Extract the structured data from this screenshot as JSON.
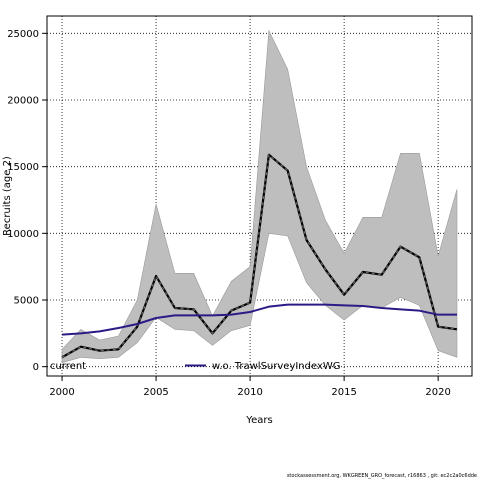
{
  "chart_data": {
    "type": "line",
    "xlabel": "Years",
    "ylabel": "Recruits (age 2)",
    "xlim": [
      1999.2,
      2021.8
    ],
    "ylim": [
      -700,
      26300
    ],
    "xticks": [
      2000,
      2005,
      2010,
      2015,
      2020
    ],
    "yticks": [
      0,
      5000,
      10000,
      15000,
      20000,
      25000
    ],
    "grid": true,
    "legend_position": "bottom",
    "colors": {
      "band": "#bebebe",
      "band_edge": "#9a9a9a",
      "current": "#000000",
      "current_dash": "#666666",
      "alt_series": "#2b1b86"
    },
    "x": [
      2000,
      2001,
      2002,
      2003,
      2004,
      2005,
      2006,
      2007,
      2008,
      2009,
      2010,
      2011,
      2012,
      2013,
      2014,
      2015,
      2016,
      2017,
      2018,
      2019,
      2020,
      2021
    ],
    "series": [
      {
        "name": "current",
        "style": "dashed",
        "values": [
          700,
          1500,
          1200,
          1300,
          3000,
          6800,
          4400,
          4300,
          2500,
          4200,
          4800,
          15900,
          14700,
          9500,
          7300,
          5400,
          7100,
          6900,
          9000,
          8200,
          3000,
          2800
        ],
        "lower": [
          300,
          700,
          600,
          700,
          1800,
          3700,
          2800,
          2700,
          1600,
          2700,
          3100,
          10000,
          9800,
          6300,
          4600,
          3500,
          4600,
          4400,
          5200,
          4600,
          1200,
          700
        ],
        "upper": [
          1300,
          2800,
          2000,
          2300,
          5000,
          12200,
          7000,
          7000,
          3800,
          6400,
          7500,
          25200,
          22300,
          15000,
          11000,
          8500,
          11200,
          11200,
          16000,
          16000,
          8300,
          13300
        ]
      },
      {
        "name": "w.o. TrawlSurveyIndexWG",
        "style": "solid",
        "values": [
          2400,
          2500,
          2650,
          2900,
          3200,
          3650,
          3850,
          3850,
          3850,
          3900,
          4100,
          4500,
          4650,
          4650,
          4650,
          4600,
          4550,
          4400,
          4300,
          4200,
          3900,
          3900
        ]
      }
    ]
  },
  "legend": {
    "current_label": "current",
    "alt_label": "w.o. TrawlSurveyIndexWG"
  },
  "footer": {
    "note": "stockassessment.org, WKGREEN_GRO_forecast, r16863 , git: ec2c2a0c6dde"
  }
}
